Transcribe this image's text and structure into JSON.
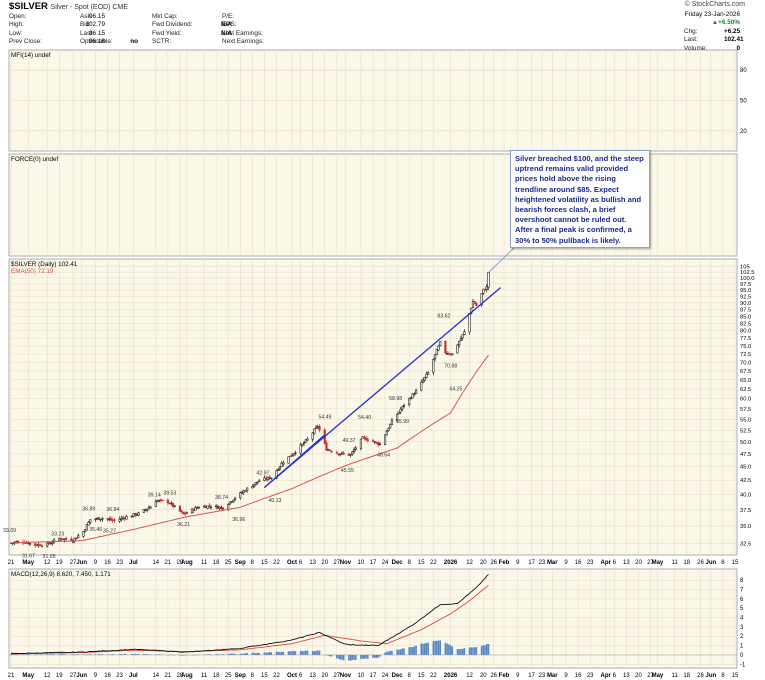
{
  "header": {
    "symbol": "$SILVER",
    "subtitle": "Silver - Spot (EOD) CME",
    "source": "© StockCharts.com",
    "date": "Friday 23-Jan-2026",
    "change_pct": "▲+6.50%"
  },
  "quote": {
    "open": {
      "label": "Open:",
      "value": "96.15"
    },
    "high": {
      "label": "High:",
      "value": "102.79"
    },
    "low": {
      "label": "Low:",
      "value": "96.15"
    },
    "prev_close": {
      "label": "Prev Close:",
      "value": "96.16"
    },
    "ask": {
      "label": "Ask:",
      "value": ""
    },
    "bid": {
      "label": "Bid:",
      "value": ""
    },
    "last_label": {
      "label": "Last:",
      "value": ""
    },
    "optionable": {
      "label": "Optionable:",
      "value": "no"
    },
    "mkt_cap": {
      "label": "Mkt Cap:",
      "value": ""
    },
    "fwd_dividend": {
      "label": "Fwd Dividend:",
      "value": "N/A"
    },
    "fwd_yield": {
      "label": "Fwd Yield:",
      "value": "N/A"
    },
    "sctr": {
      "label": "SCTR:",
      "value": ""
    },
    "pe": {
      "label": "P/E:",
      "value": ""
    },
    "eps": {
      "label": "EPS:",
      "value": ""
    },
    "last_earnings": {
      "label": "Last Earnings:",
      "value": ""
    },
    "next_earnings": {
      "label": "Next Earnings:",
      "value": ""
    },
    "chg": {
      "label": "Chg:",
      "value": "+6.25"
    },
    "last": {
      "label": "Last:",
      "value": "102.41"
    },
    "volume": {
      "label": "Volume:",
      "value": "0"
    }
  },
  "callout": "Silver breached $100, and the steep uptrend remains valid provided prices hold above the rising trendline around $85. Expect heightened volatility as bullish and bearish forces clash, a brief overshoot cannot be ruled out. After a final peak is confirmed, a 30% to 50% pullback is likely.",
  "colors": {
    "panel_bg": "#fbf8ea",
    "grid": "#e4dcc0",
    "up": "#1f1f1f",
    "down": "#c0322e",
    "ema": "#d9534f",
    "trendline": "#2430c8",
    "macd_line": "#111111",
    "signal_line": "#e0483e",
    "hist": "#5b86c4"
  },
  "chart_data": [
    {
      "type": "line",
      "name": "mfi",
      "legend": "MFI(14) undef",
      "y_ticks": [
        80,
        50,
        20
      ],
      "ylim": [
        0,
        100
      ]
    },
    {
      "type": "line",
      "name": "force",
      "legend": "FORCE(0) undef"
    },
    {
      "type": "candlestick",
      "name": "price",
      "legend_series": "$SILVER (Daily) 102.41",
      "legend_ema": "EMA(50) 72.19",
      "scale": "log",
      "ylim": [
        31.5,
        103
      ],
      "y_ticks": [
        32.5,
        35.0,
        37.5,
        40.0,
        42.5,
        45.0,
        47.5,
        50.0,
        52.5,
        55.0,
        57.5,
        60.0,
        62.5,
        65.0,
        67.5,
        70.0,
        72.5,
        75.0,
        77.5,
        80.0,
        82.5,
        85.0,
        87.5,
        90.0,
        92.5,
        95.0,
        97.5,
        100.0,
        102.5,
        105
      ],
      "y_tick_labels": [
        "32.5",
        "35.0",
        "37.5",
        "40.0",
        "42.5",
        "45.0",
        "47.5",
        "50.0",
        "52.5",
        "55.0",
        "57.5",
        "60.0",
        "62.5",
        "65.0",
        "67.5",
        "70.0",
        "72.5",
        "75.0",
        "77.5",
        "80.0",
        "82.5",
        "85.0",
        "87.5",
        "90.0",
        "92.5",
        "95.0",
        "97.5",
        "100.0",
        "102.5",
        "105"
      ],
      "close_anchors": [
        [
          "2025-04-21",
          32.6
        ],
        [
          "2025-04-28",
          32.8
        ],
        [
          "2025-05-05",
          32.3
        ],
        [
          "2025-05-12",
          32.4
        ],
        [
          "2025-05-19",
          33.2
        ],
        [
          "2025-05-27",
          33.0
        ],
        [
          "2025-06-02",
          34.2
        ],
        [
          "2025-06-06",
          36.0
        ],
        [
          "2025-06-13",
          36.2
        ],
        [
          "2025-06-20",
          35.8
        ],
        [
          "2025-06-27",
          36.4
        ],
        [
          "2025-07-04",
          36.9
        ],
        [
          "2025-07-11",
          38.0
        ],
        [
          "2025-07-14",
          39.0
        ],
        [
          "2025-07-21",
          38.8
        ],
        [
          "2025-07-30",
          36.8
        ],
        [
          "2025-08-08",
          38.0
        ],
        [
          "2025-08-15",
          38.1
        ],
        [
          "2025-08-22",
          37.8
        ],
        [
          "2025-08-29",
          39.5
        ],
        [
          "2025-09-05",
          41.0
        ],
        [
          "2025-09-12",
          42.4
        ],
        [
          "2025-09-19",
          43.0
        ],
        [
          "2025-09-26",
          46.0
        ],
        [
          "2025-10-03",
          48.0
        ],
        [
          "2025-10-10",
          50.5
        ],
        [
          "2025-10-16",
          53.5
        ],
        [
          "2025-10-21",
          48.5
        ],
        [
          "2025-10-28",
          47.6
        ],
        [
          "2025-11-04",
          47.3
        ],
        [
          "2025-11-11",
          50.8
        ],
        [
          "2025-11-14",
          50.5
        ],
        [
          "2025-11-21",
          49.5
        ],
        [
          "2025-11-28",
          54.5
        ],
        [
          "2025-12-05",
          58.5
        ],
        [
          "2025-12-12",
          62.0
        ],
        [
          "2025-12-19",
          67.0
        ],
        [
          "2025-12-26",
          76.0
        ],
        [
          "2025-12-29",
          73.0
        ],
        [
          "2026-01-02",
          72.5
        ],
        [
          "2026-01-09",
          79.5
        ],
        [
          "2026-01-14",
          90.5
        ],
        [
          "2026-01-16",
          89.0
        ],
        [
          "2026-01-20",
          95.0
        ],
        [
          "2026-01-22",
          96.16
        ],
        [
          "2026-01-23",
          102.41
        ]
      ],
      "ema_anchors": [
        [
          "2025-04-21",
          32.6
        ],
        [
          "2025-06-01",
          32.9
        ],
        [
          "2025-07-01",
          34.5
        ],
        [
          "2025-08-01",
          36.4
        ],
        [
          "2025-09-01",
          37.9
        ],
        [
          "2025-10-01",
          41.0
        ],
        [
          "2025-11-01",
          45.2
        ],
        [
          "2025-12-01",
          48.7
        ],
        [
          "2026-01-01",
          56.5
        ],
        [
          "2026-01-23",
          72.19
        ]
      ],
      "trendline": [
        [
          "2025-09-15",
          41.2
        ],
        [
          "2026-01-30",
          96.0
        ]
      ],
      "trendline2": [
        [
          "2025-09-15",
          41.2
        ],
        [
          "2025-10-20",
          51.5
        ]
      ],
      "annotations": [
        [
          "2025-04-21",
          33.69,
          "33.69"
        ],
        [
          "2025-05-02",
          31.67,
          "31.67"
        ],
        [
          "2025-05-14",
          31.65,
          "31.65"
        ],
        [
          "2025-05-19",
          33.23,
          "33.23"
        ],
        [
          "2025-06-06",
          36.89,
          "36.89"
        ],
        [
          "2025-06-10",
          35.46,
          "35.46"
        ],
        [
          "2025-06-18",
          35.27,
          "35.27"
        ],
        [
          "2025-06-20",
          36.84,
          "36.84"
        ],
        [
          "2025-07-14",
          39.14,
          "39.14"
        ],
        [
          "2025-07-23",
          39.53,
          "39.53"
        ],
        [
          "2025-07-31",
          36.21,
          "36.21"
        ],
        [
          "2025-08-22",
          38.74,
          "38.74"
        ],
        [
          "2025-09-01",
          36.96,
          "36.96"
        ],
        [
          "2025-09-15",
          42.97,
          "42.97"
        ],
        [
          "2025-09-22",
          40.13,
          "40.13"
        ],
        [
          "2025-10-21",
          54.49,
          "54.49"
        ],
        [
          "2025-11-04",
          49.37,
          "49.37"
        ],
        [
          "2025-11-03",
          45.55,
          "45.55"
        ],
        [
          "2025-11-13",
          54.4,
          "54.40"
        ],
        [
          "2025-11-24",
          48.64,
          "48.64"
        ],
        [
          "2025-12-01",
          58.98,
          "58.98"
        ],
        [
          "2025-12-05",
          55.99,
          "55.99"
        ],
        [
          "2025-12-29",
          83.62,
          "83.62"
        ],
        [
          "2026-01-02",
          70.88,
          "70.88"
        ],
        [
          "2026-01-05",
          64.25,
          "64.25"
        ]
      ]
    },
    {
      "type": "line",
      "name": "macd",
      "legend": "MACD(12,26,9) 8.620, 7.450, 1.171",
      "ylim": [
        -1.4,
        9.2
      ],
      "y_ticks": [
        -1,
        0,
        1,
        2,
        3,
        4,
        5,
        6,
        7,
        8
      ],
      "macd_anchors": [
        [
          "2025-04-21",
          0.15
        ],
        [
          "2025-06-01",
          0.3
        ],
        [
          "2025-07-01",
          0.6
        ],
        [
          "2025-08-01",
          0.3
        ],
        [
          "2025-09-01",
          0.7
        ],
        [
          "2025-10-01",
          1.6
        ],
        [
          "2025-10-17",
          2.4
        ],
        [
          "2025-11-01",
          1.1
        ],
        [
          "2025-11-20",
          1.0
        ],
        [
          "2025-12-10",
          3.2
        ],
        [
          "2025-12-26",
          5.4
        ],
        [
          "2026-01-05",
          5.5
        ],
        [
          "2026-01-16",
          7.2
        ],
        [
          "2026-01-23",
          8.62
        ]
      ],
      "signal_anchors": [
        [
          "2025-04-21",
          0.1
        ],
        [
          "2025-06-01",
          0.25
        ],
        [
          "2025-07-01",
          0.5
        ],
        [
          "2025-08-01",
          0.35
        ],
        [
          "2025-09-01",
          0.55
        ],
        [
          "2025-10-01",
          1.2
        ],
        [
          "2025-10-20",
          2.1
        ],
        [
          "2025-11-10",
          1.5
        ],
        [
          "2025-11-25",
          1.2
        ],
        [
          "2025-12-15",
          2.7
        ],
        [
          "2026-01-01",
          4.4
        ],
        [
          "2026-01-12",
          5.8
        ],
        [
          "2026-01-23",
          7.45
        ]
      ]
    }
  ],
  "x_axis": {
    "start": "2025-04-21",
    "end": "2026-06-15",
    "ticks": [
      [
        "2025-04-21",
        "21"
      ],
      [
        "2025-05-01",
        "May"
      ],
      [
        "2025-05-12",
        "12"
      ],
      [
        "2025-05-19",
        "19"
      ],
      [
        "2025-05-27",
        "27"
      ],
      [
        "2025-06-01",
        "Jun"
      ],
      [
        "2025-06-09",
        "9"
      ],
      [
        "2025-06-16",
        "16"
      ],
      [
        "2025-06-23",
        "23"
      ],
      [
        "2025-07-01",
        "Jul"
      ],
      [
        "2025-07-14",
        "14"
      ],
      [
        "2025-07-21",
        "21"
      ],
      [
        "2025-07-28",
        "28"
      ],
      [
        "2025-08-01",
        "Aug"
      ],
      [
        "2025-08-11",
        "11"
      ],
      [
        "2025-08-18",
        "18"
      ],
      [
        "2025-08-25",
        "25"
      ],
      [
        "2025-09-01",
        "Sep"
      ],
      [
        "2025-09-08",
        "8"
      ],
      [
        "2025-09-15",
        "15"
      ],
      [
        "2025-09-22",
        "22"
      ],
      [
        "2025-10-01",
        "Oct"
      ],
      [
        "2025-10-06",
        "6"
      ],
      [
        "2025-10-13",
        "13"
      ],
      [
        "2025-10-20",
        "20"
      ],
      [
        "2025-10-27",
        "27"
      ],
      [
        "2025-11-01",
        "Nov"
      ],
      [
        "2025-11-10",
        "10"
      ],
      [
        "2025-11-17",
        "17"
      ],
      [
        "2025-11-24",
        "24"
      ],
      [
        "2025-12-01",
        "Dec"
      ],
      [
        "2025-12-08",
        "8"
      ],
      [
        "2025-12-15",
        "15"
      ],
      [
        "2025-12-22",
        "22"
      ],
      [
        "2026-01-01",
        "2026"
      ],
      [
        "2026-01-12",
        "12"
      ],
      [
        "2026-01-20",
        "20"
      ],
      [
        "2026-01-26",
        "26"
      ],
      [
        "2026-02-01",
        "Feb"
      ],
      [
        "2026-02-09",
        "9"
      ],
      [
        "2026-02-17",
        "17"
      ],
      [
        "2026-02-23",
        "23"
      ],
      [
        "2026-03-01",
        "Mar"
      ],
      [
        "2026-03-09",
        "9"
      ],
      [
        "2026-03-16",
        "16"
      ],
      [
        "2026-03-23",
        "23"
      ],
      [
        "2026-04-01",
        "Apr"
      ],
      [
        "2026-04-06",
        "6"
      ],
      [
        "2026-04-13",
        "13"
      ],
      [
        "2026-04-20",
        "20"
      ],
      [
        "2026-04-27",
        "27"
      ],
      [
        "2026-05-01",
        "May"
      ],
      [
        "2026-05-11",
        "11"
      ],
      [
        "2026-05-18",
        "18"
      ],
      [
        "2026-05-26",
        "26"
      ],
      [
        "2026-06-01",
        "Jun"
      ],
      [
        "2026-06-08",
        "8"
      ],
      [
        "2026-06-15",
        "15"
      ]
    ]
  }
}
